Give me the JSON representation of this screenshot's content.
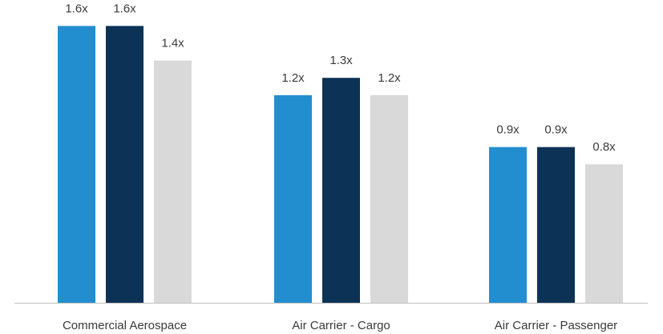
{
  "chart_data": {
    "type": "bar",
    "categories": [
      "Commercial Aerospace",
      "Air Carrier - Cargo",
      "Air Carrier - Passenger"
    ],
    "series": [
      {
        "values": [
          1.6,
          1.2,
          0.9
        ],
        "labels": [
          "1.6x",
          "1.2x",
          "0.9x"
        ],
        "color": "#228ed0"
      },
      {
        "values": [
          1.6,
          1.3,
          0.9
        ],
        "labels": [
          "1.6x",
          "1.3x",
          "0.9x"
        ],
        "color": "#0c3256"
      },
      {
        "values": [
          1.4,
          1.2,
          0.8
        ],
        "labels": [
          "1.4x",
          "1.2x",
          "0.8x"
        ],
        "color": "#d9d9d9"
      }
    ],
    "title": "",
    "xlabel": "",
    "ylabel": "",
    "ylim": [
      0,
      1.75
    ],
    "grid": false,
    "legend": "none",
    "axis_color": "#bfbfbf"
  }
}
